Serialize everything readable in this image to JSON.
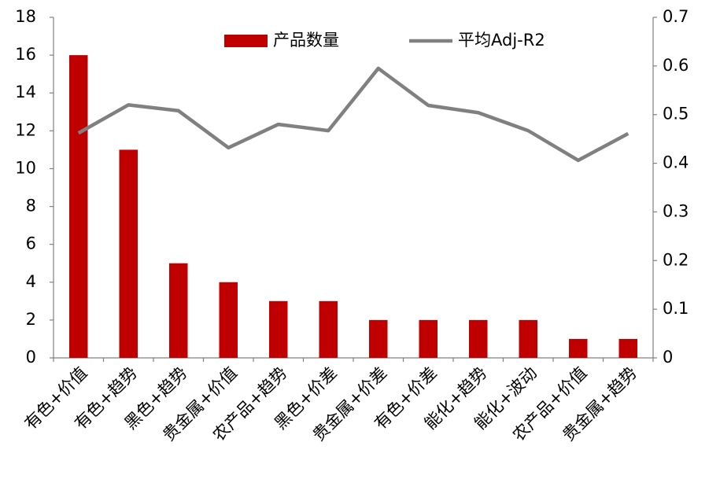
{
  "chart_data": {
    "type": "bar",
    "categories": [
      "有色+价值",
      "有色+趋势",
      "黑色+趋势",
      "贵金属+价值",
      "农产品+趋势",
      "黑色+价差",
      "贵金属+价差",
      "有色+价差",
      "能化+趋势",
      "能化+波动",
      "农产品+价值",
      "贵金属+趋势"
    ],
    "series": [
      {
        "name": "产品数量",
        "type": "bar",
        "color": "#c00000",
        "values": [
          16,
          11,
          5,
          4,
          3,
          3,
          2,
          2,
          2,
          2,
          1,
          1
        ]
      },
      {
        "name": "平均Adj-R2",
        "type": "line",
        "axis": "y2",
        "color": "#808080",
        "values": [
          0.462,
          0.52,
          0.508,
          0.432,
          0.48,
          0.467,
          0.595,
          0.519,
          0.504,
          0.467,
          0.406,
          0.461
        ]
      }
    ],
    "ylim": [
      0,
      18
    ],
    "yticks": [
      0,
      2,
      4,
      6,
      8,
      10,
      12,
      14,
      16,
      18
    ],
    "y2lim": [
      0,
      0.7
    ],
    "y2ticks": [
      0,
      0.1,
      0.2,
      0.3,
      0.4,
      0.5,
      0.6,
      0.7
    ],
    "legend": "top"
  }
}
